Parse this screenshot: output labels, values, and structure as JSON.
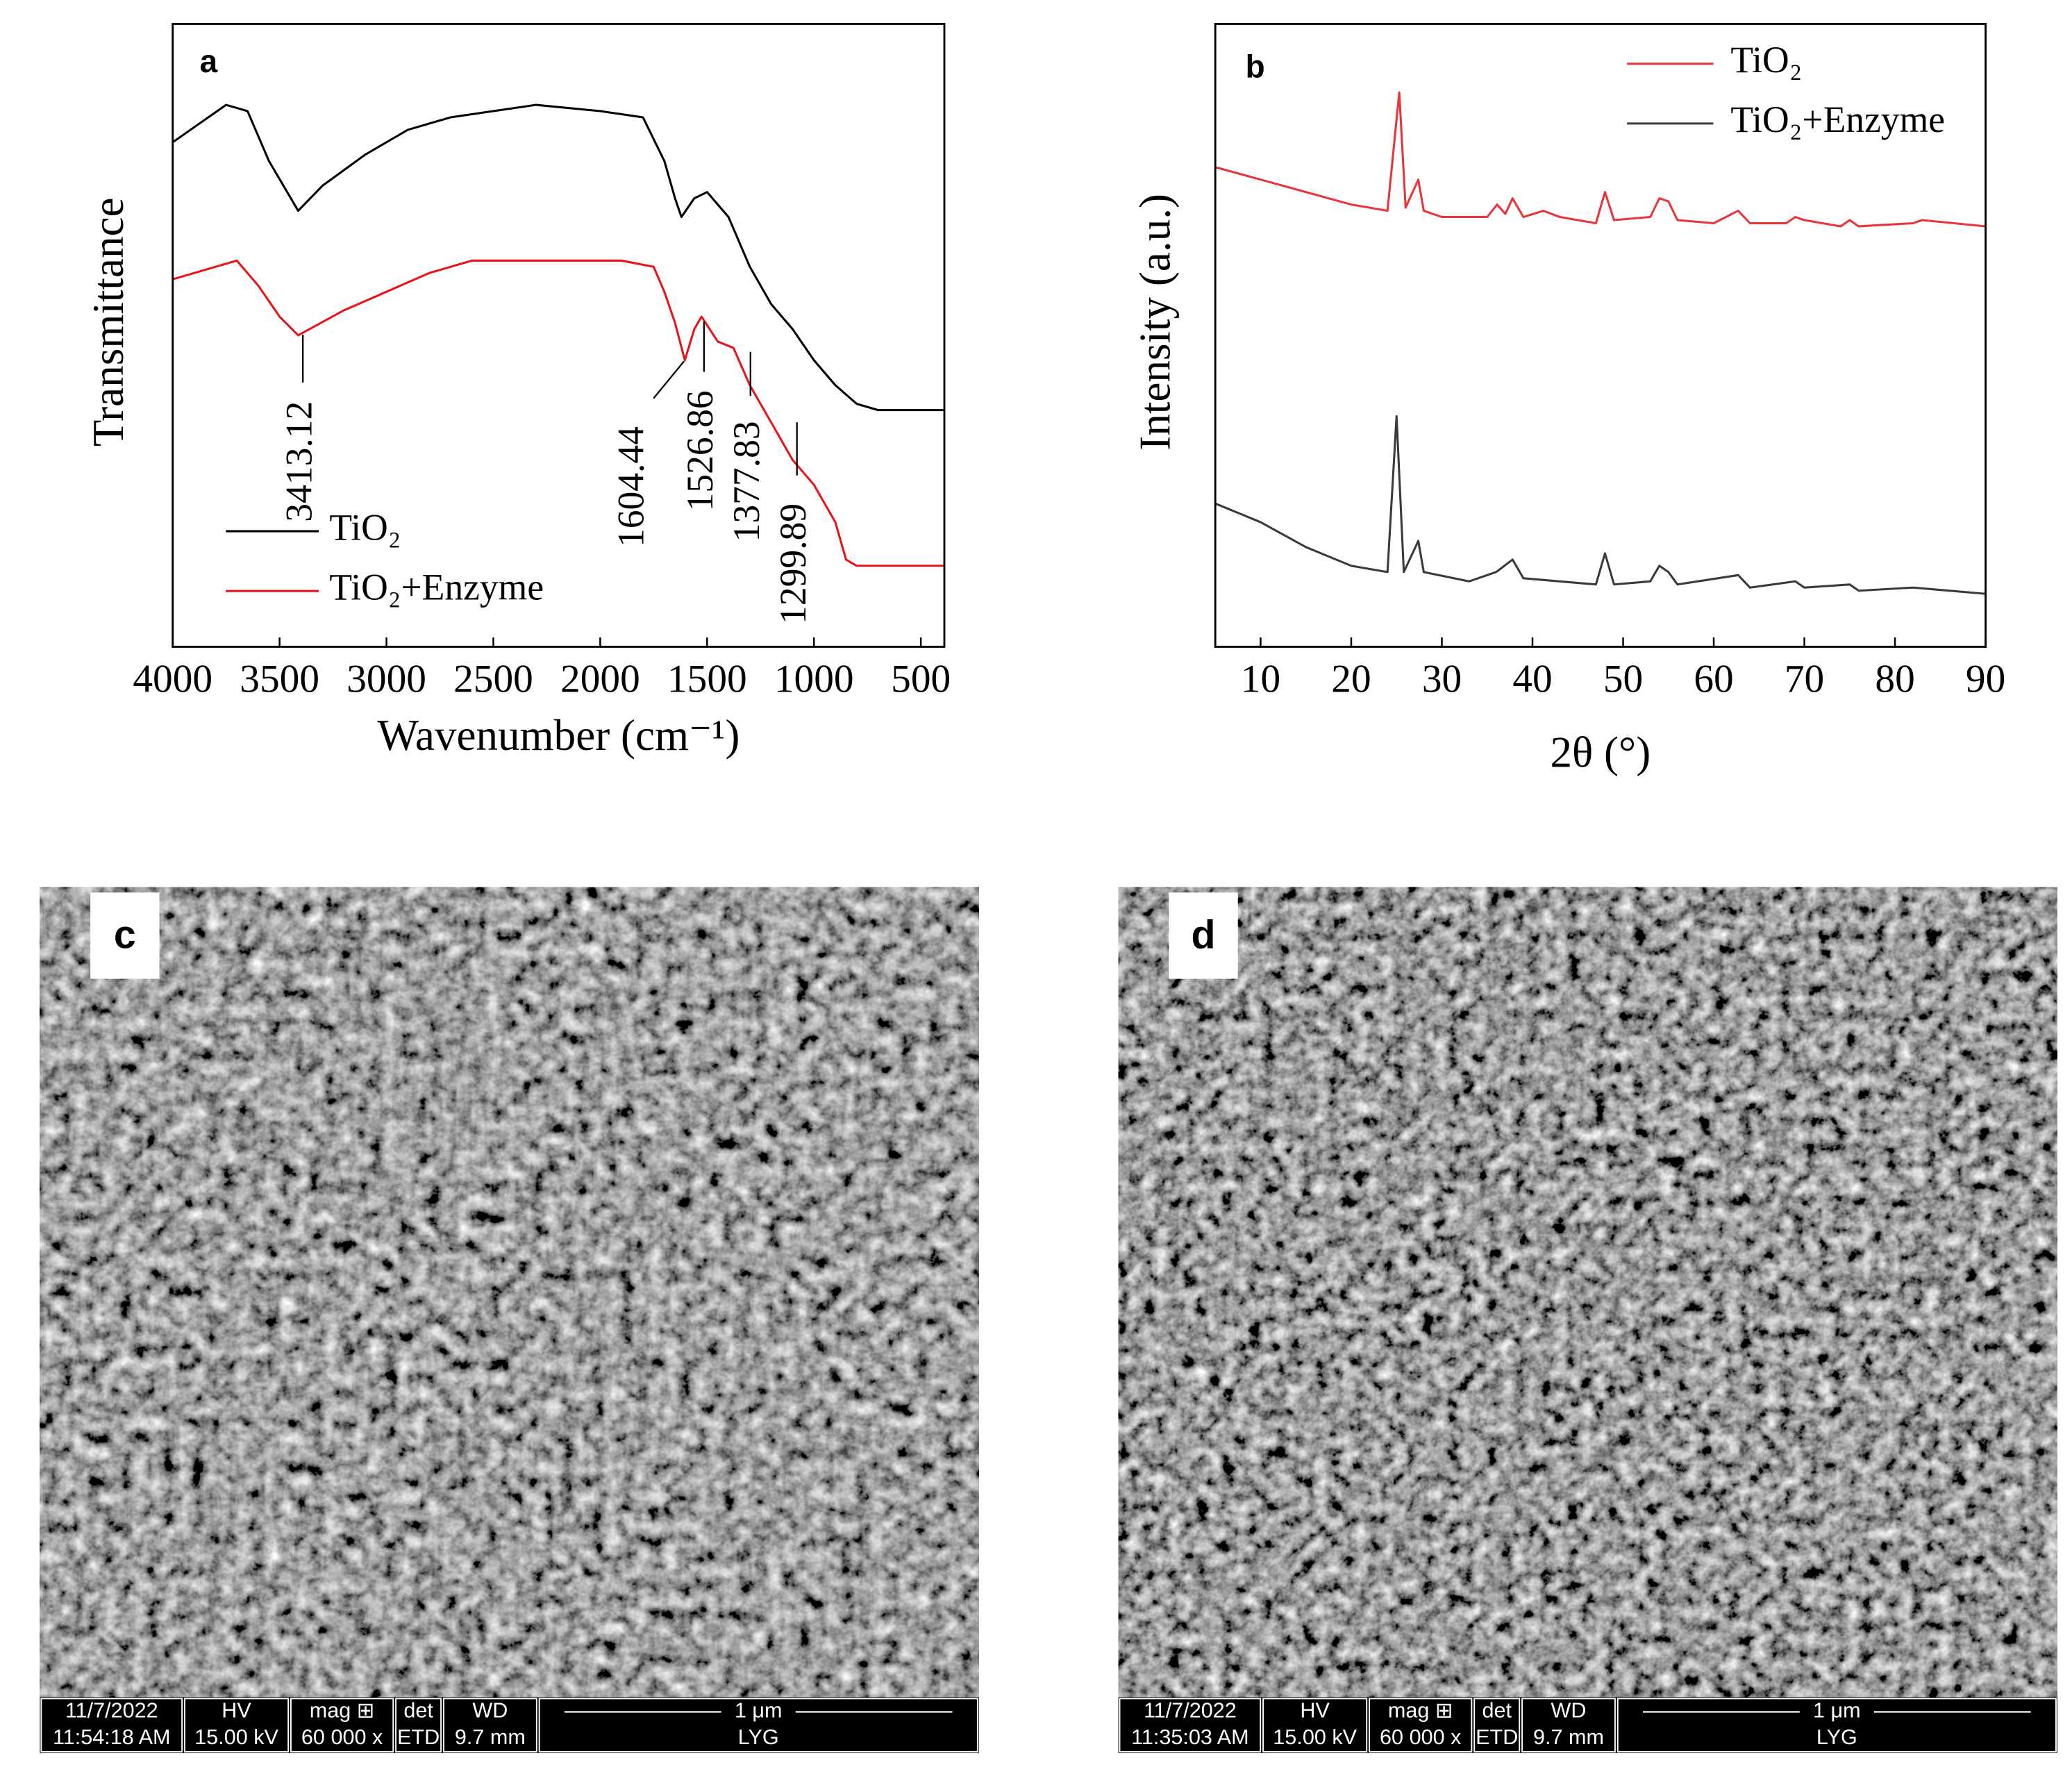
{
  "chart_data": [
    {
      "type": "line",
      "panel_label": "a",
      "xlabel": "Wavenumber (cm⁻¹)",
      "ylabel": "Transmittance",
      "xlim": [
        4000,
        390
      ],
      "ylim": [
        0,
        100
      ],
      "xticks": [
        4000,
        3500,
        3000,
        2500,
        2000,
        1500,
        1000,
        500
      ],
      "legend": "lower left",
      "series": [
        {
          "name": "TiO₂",
          "color": "#000000",
          "x": [
            4000,
            3750,
            3650,
            3550,
            3413,
            3300,
            3100,
            2900,
            2700,
            2500,
            2300,
            2000,
            1800,
            1700,
            1650,
            1620,
            1560,
            1500,
            1400,
            1300,
            1200,
            1100,
            1000,
            900,
            800,
            700,
            390
          ],
          "values": [
            81,
            87,
            86,
            78,
            70,
            74,
            79,
            83,
            85,
            86,
            87,
            86,
            85,
            78,
            72,
            69,
            72,
            73,
            69,
            61,
            55,
            51,
            46,
            42,
            39,
            38,
            38
          ]
        },
        {
          "name": "TiO₂+Enzyme",
          "color": "#e8141a",
          "x": [
            4000,
            3700,
            3600,
            3500,
            3413,
            3200,
            3000,
            2800,
            2600,
            2300,
            1900,
            1750,
            1700,
            1650,
            1604,
            1560,
            1526,
            1450,
            1377,
            1300,
            1200,
            1100,
            1000,
            900,
            850,
            800,
            700,
            390
          ],
          "values": [
            59,
            62,
            58,
            53,
            50,
            54,
            57,
            60,
            62,
            62,
            62,
            61,
            57,
            52,
            46,
            51,
            53,
            49,
            48,
            42,
            36,
            30,
            26,
            20,
            14,
            13,
            13,
            13
          ]
        }
      ],
      "annotations": [
        "3413.12",
        "1604.44",
        "1526.86",
        "1377.83",
        "1299.89"
      ]
    },
    {
      "type": "line",
      "panel_label": "b",
      "xlabel": "2θ (°)",
      "ylabel": "Intensity (a.u.)",
      "xlim": [
        5,
        90
      ],
      "ylim": [
        0,
        100
      ],
      "xticks": [
        10,
        20,
        30,
        40,
        50,
        60,
        70,
        80,
        90
      ],
      "legend": "upper right",
      "series": [
        {
          "name": "TiO₂",
          "color": "#e8343a",
          "x": [
            5,
            10,
            15,
            20,
            24,
            25.3,
            26,
            27.4,
            28,
            30,
            35,
            36.1,
            37,
            37.8,
            39,
            41.2,
            43,
            47,
            48,
            49,
            53,
            54,
            55,
            56,
            60,
            62.7,
            64,
            68,
            69,
            70,
            74,
            75,
            76,
            82,
            83,
            90
          ],
          "values": [
            77,
            75,
            73,
            71,
            70,
            89,
            70.5,
            75,
            70,
            69,
            69,
            71,
            69.5,
            72,
            69,
            70,
            69,
            68,
            73,
            68.5,
            69,
            72,
            71.5,
            68.5,
            68,
            70,
            68,
            68,
            69,
            68.5,
            67.5,
            68.5,
            67.5,
            68,
            68.5,
            67.5
          ]
        },
        {
          "name": "TiO₂+Enzyme",
          "color": "#3a3a3a",
          "x": [
            5,
            10,
            15,
            20,
            24,
            25,
            25.8,
            27.4,
            28,
            33,
            36,
            37.8,
            39,
            47,
            48,
            49,
            53,
            54,
            55,
            56,
            62.7,
            64,
            69,
            70,
            75,
            76,
            82,
            90
          ],
          "values": [
            23,
            20,
            16,
            13,
            12,
            37,
            12,
            17,
            12,
            10.5,
            12,
            14,
            11,
            10,
            15,
            10,
            10.5,
            13,
            12,
            10,
            11.5,
            9.5,
            10.5,
            9.5,
            10,
            9,
            9.5,
            8.5
          ]
        }
      ]
    }
  ],
  "sem_images": [
    {
      "panel_label": "c",
      "date": "11/7/2022",
      "time": "11:54:18 AM",
      "hv_label": "HV",
      "hv": "15.00 kV",
      "mag_label": "mag ⊞",
      "mag": "60 000 x",
      "det_label": "det",
      "det": "ETD",
      "wd_label": "WD",
      "wd": "9.7 mm",
      "scale": "1 μm",
      "operator": "LYG"
    },
    {
      "panel_label": "d",
      "date": "11/7/2022",
      "time": "11:35:03 AM",
      "hv_label": "HV",
      "hv": "15.00 kV",
      "mag_label": "mag ⊞",
      "mag": "60 000 x",
      "det_label": "det",
      "det": "ETD",
      "wd_label": "WD",
      "wd": "9.7 mm",
      "scale": "1 μm",
      "operator": "LYG"
    }
  ]
}
